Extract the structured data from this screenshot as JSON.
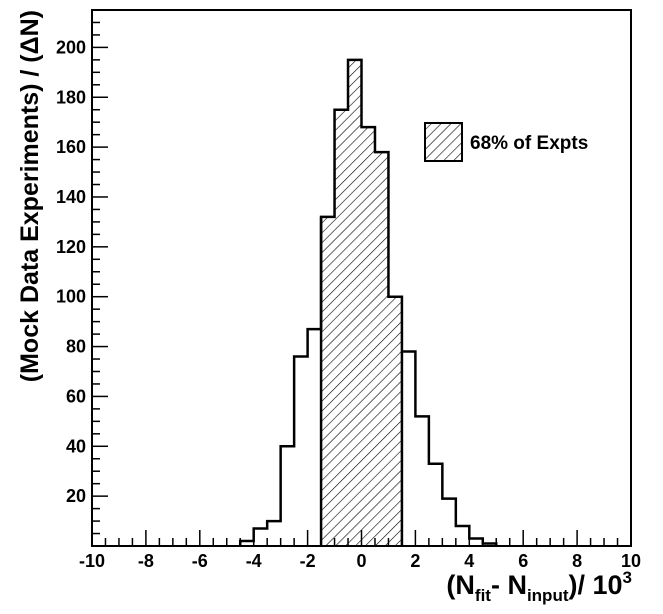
{
  "chart_data": {
    "type": "bar",
    "title": "",
    "xlabel": {
      "prefix": "(N",
      "sub1": "fit",
      "mid": "- N",
      "sub2": "input",
      "suffix": ")/ 10",
      "sup": "3"
    },
    "ylabel": "(Mock Data Experiments) / (ΔN)",
    "xlim": [
      -10,
      10
    ],
    "ylim": [
      0,
      215
    ],
    "bin_width": 0.5,
    "x_ticks": [
      -10,
      -8,
      -6,
      -4,
      -2,
      0,
      2,
      4,
      6,
      8,
      10
    ],
    "x_tick_labels": [
      "-10",
      "-8",
      "-6",
      "-4",
      "-2",
      "0",
      "2",
      "4",
      "6",
      "8",
      "10"
    ],
    "y_ticks": [
      20,
      40,
      60,
      80,
      100,
      120,
      140,
      160,
      180,
      200
    ],
    "y_tick_labels": [
      "20",
      "40",
      "60",
      "80",
      "100",
      "120",
      "140",
      "160",
      "180",
      "200"
    ],
    "bins": [
      {
        "x0": -4.5,
        "x1": -4.0,
        "value": 2
      },
      {
        "x0": -4.0,
        "x1": -3.5,
        "value": 7
      },
      {
        "x0": -3.5,
        "x1": -3.0,
        "value": 10
      },
      {
        "x0": -3.0,
        "x1": -2.5,
        "value": 40
      },
      {
        "x0": -2.5,
        "x1": -2.0,
        "value": 76
      },
      {
        "x0": -2.0,
        "x1": -1.5,
        "value": 87
      },
      {
        "x0": -1.5,
        "x1": -1.0,
        "value": 132
      },
      {
        "x0": -1.0,
        "x1": -0.5,
        "value": 175
      },
      {
        "x0": -0.5,
        "x1": 0.0,
        "value": 195
      },
      {
        "x0": 0.0,
        "x1": 0.5,
        "value": 168
      },
      {
        "x0": 0.5,
        "x1": 1.0,
        "value": 158
      },
      {
        "x0": 1.0,
        "x1": 1.5,
        "value": 100
      },
      {
        "x0": 1.5,
        "x1": 2.0,
        "value": 78
      },
      {
        "x0": 2.0,
        "x1": 2.5,
        "value": 52
      },
      {
        "x0": 2.5,
        "x1": 3.0,
        "value": 33
      },
      {
        "x0": 3.0,
        "x1": 3.5,
        "value": 19
      },
      {
        "x0": 3.5,
        "x1": 4.0,
        "value": 8
      },
      {
        "x0": 4.0,
        "x1": 4.5,
        "value": 3
      },
      {
        "x0": 4.5,
        "x1": 5.0,
        "value": 1
      }
    ],
    "shaded_range": [
      -1.5,
      1.5
    ],
    "legend": {
      "label": "68% of Expts",
      "position": "top-right"
    },
    "colors": {
      "line": "#000000",
      "hatch": "#000000",
      "background": "#ffffff"
    }
  }
}
